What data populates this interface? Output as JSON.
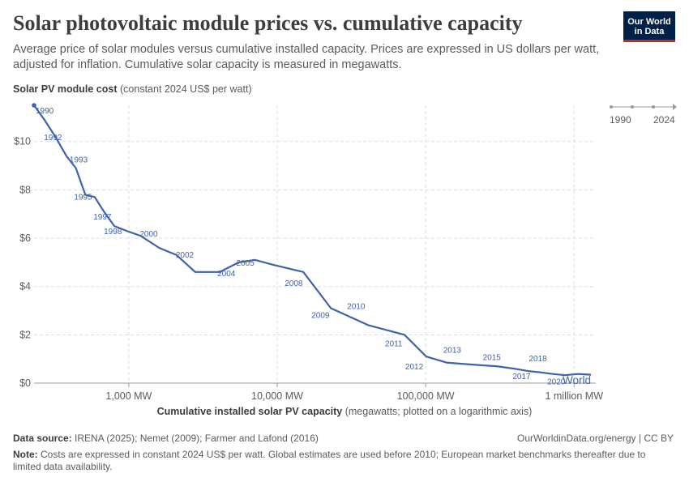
{
  "header": {
    "title": "Solar photovoltaic module prices vs. cumulative capacity",
    "subtitle": "Average price of solar modules versus cumulative installed capacity. Prices are expressed in US dollars per watt, adjusted for inflation. Cumulative solar capacity is measured in megawatts.",
    "logo_line1": "Our World",
    "logo_line2": "in Data"
  },
  "axes": {
    "y_title": "Solar PV module cost",
    "y_unit": "(constant 2024 US$ per watt)",
    "x_title": "Cumulative installed solar PV capacity",
    "x_unit": "(megawatts; plotted on a logarithmic axis)"
  },
  "timeline": {
    "start": "1990",
    "end": "2024"
  },
  "footer": {
    "source_label": "Data source:",
    "source_text": "IRENA (2025); Nemet (2009); Farmer and Lafond (2016)",
    "note_label": "Note:",
    "note_text": "Costs are expressed in constant 2024 US$ per watt. Global estimates are used before 2010; European market benchmarks thereafter due to limited data availability.",
    "credit": "OurWorldinData.org/energy | CC BY"
  },
  "colors": {
    "line": "#3f62ad",
    "text": "#5b5b5b",
    "grid": "#dddddd",
    "logo_bg": "#002147",
    "logo_accent": "#ce261e"
  },
  "chart_data": {
    "type": "line",
    "x_scale": "log",
    "grid": true,
    "ylim": [
      0,
      11.5
    ],
    "xlim": [
      230,
      1400000
    ],
    "x_ticks": [
      {
        "value": 1000,
        "label": "1,000 MW"
      },
      {
        "value": 10000,
        "label": "10,000 MW"
      },
      {
        "value": 100000,
        "label": "100,000 MW"
      },
      {
        "value": 1000000,
        "label": "1 million MW"
      }
    ],
    "y_ticks": [
      {
        "value": 0,
        "label": "$0"
      },
      {
        "value": 2,
        "label": "$2"
      },
      {
        "value": 4,
        "label": "$4"
      },
      {
        "value": 6,
        "label": "$6"
      },
      {
        "value": 8,
        "label": "$8"
      },
      {
        "value": 10,
        "label": "$10"
      }
    ],
    "series": [
      {
        "name": "World",
        "points": [
          {
            "year": "1990",
            "x": 230,
            "y": 11.5
          },
          {
            "year": "1991",
            "x": 270,
            "y": 10.9
          },
          {
            "year": "1992",
            "x": 320,
            "y": 10.2
          },
          {
            "year": "1993",
            "x": 380,
            "y": 9.4
          },
          {
            "year": "1994",
            "x": 440,
            "y": 8.9
          },
          {
            "year": "1995",
            "x": 510,
            "y": 7.8
          },
          {
            "year": "1996",
            "x": 590,
            "y": 7.7
          },
          {
            "year": "1997",
            "x": 680,
            "y": 7.1
          },
          {
            "year": "1998",
            "x": 800,
            "y": 6.5
          },
          {
            "year": "1999",
            "x": 970,
            "y": 6.3
          },
          {
            "year": "2000",
            "x": 1200,
            "y": 6.1
          },
          {
            "year": "2001",
            "x": 1600,
            "y": 5.6
          },
          {
            "year": "2002",
            "x": 2100,
            "y": 5.3
          },
          {
            "year": "2003",
            "x": 2800,
            "y": 4.6
          },
          {
            "year": "2004",
            "x": 4100,
            "y": 4.6
          },
          {
            "year": "2005",
            "x": 5500,
            "y": 5.0
          },
          {
            "year": "2006",
            "x": 7100,
            "y": 5.1
          },
          {
            "year": "2007",
            "x": 9400,
            "y": 4.9
          },
          {
            "year": "2008",
            "x": 15000,
            "y": 4.6
          },
          {
            "year": "2009",
            "x": 23000,
            "y": 3.1
          },
          {
            "year": "2010",
            "x": 41000,
            "y": 2.4
          },
          {
            "year": "2011",
            "x": 72000,
            "y": 2.0
          },
          {
            "year": "2012",
            "x": 101000,
            "y": 1.1
          },
          {
            "year": "2013",
            "x": 138000,
            "y": 0.85
          },
          {
            "year": "2014",
            "x": 175000,
            "y": 0.8
          },
          {
            "year": "2015",
            "x": 225000,
            "y": 0.75
          },
          {
            "year": "2016",
            "x": 300000,
            "y": 0.7
          },
          {
            "year": "2017",
            "x": 395000,
            "y": 0.6
          },
          {
            "year": "2018",
            "x": 490000,
            "y": 0.5
          },
          {
            "year": "2019",
            "x": 590000,
            "y": 0.45
          },
          {
            "year": "2020",
            "x": 720000,
            "y": 0.38
          },
          {
            "year": "2021",
            "x": 870000,
            "y": 0.33
          },
          {
            "year": "2022",
            "x": 1060000,
            "y": 0.38
          },
          {
            "year": "2023",
            "x": 1300000,
            "y": 0.35
          }
        ]
      }
    ],
    "labeled_years": [
      "1990",
      "1992",
      "1993",
      "1995",
      "1997",
      "1998",
      "2000",
      "2002",
      "2004",
      "2005",
      "2008",
      "2009",
      "2010",
      "2011",
      "2012",
      "2013",
      "2015",
      "2017",
      "2018",
      "2020"
    ]
  }
}
